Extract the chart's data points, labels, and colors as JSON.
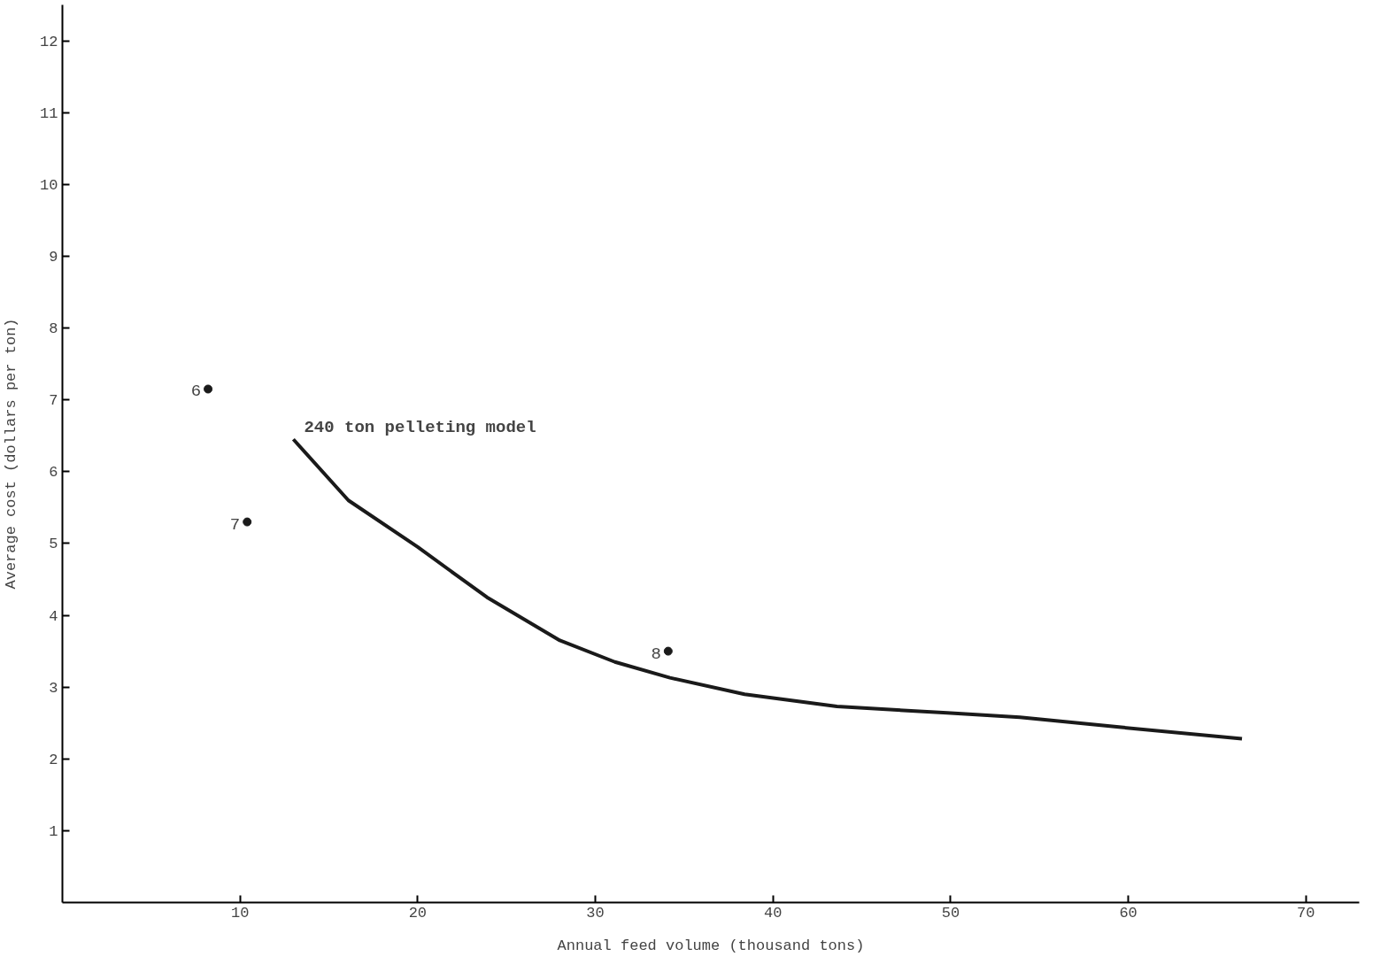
{
  "chart_data": {
    "type": "line",
    "xlabel": "Annual feed volume (thousand tons)",
    "ylabel": "Average cost (dollars per ton)",
    "xlim": [
      0,
      73
    ],
    "ylim": [
      0,
      12.5
    ],
    "xticks": [
      10,
      20,
      30,
      40,
      50,
      60,
      70
    ],
    "yticks": [
      1,
      2,
      3,
      4,
      5,
      6,
      7,
      8,
      9,
      10,
      11,
      12
    ],
    "grid": false,
    "series": [
      {
        "color": "#1a1a1a",
        "x": [
          13.0,
          16.1,
          20.0,
          23.9,
          28.0,
          31.1,
          34.2,
          38.4,
          43.6,
          49.8,
          53.9,
          59.6,
          66.4
        ],
        "values": [
          6.45,
          5.6,
          4.95,
          4.25,
          3.65,
          3.35,
          3.13,
          2.9,
          2.73,
          2.64,
          2.58,
          2.44,
          2.28
        ]
      },
      {
        "type": "scatter",
        "color": "#1a1a1a",
        "marker": "circle",
        "x": [
          8.2,
          10.4,
          34.1
        ],
        "values": [
          7.15,
          5.3,
          3.5
        ]
      }
    ],
    "annotations": [
      {
        "text": "6",
        "x": 8.2,
        "y": 7.15
      },
      {
        "text": "7",
        "x": 10.4,
        "y": 5.3
      },
      {
        "text": "8",
        "x": 34.1,
        "y": 3.5
      },
      {
        "text": "240 ton pelleting model",
        "x": 13.0,
        "y": 6.45
      }
    ]
  }
}
